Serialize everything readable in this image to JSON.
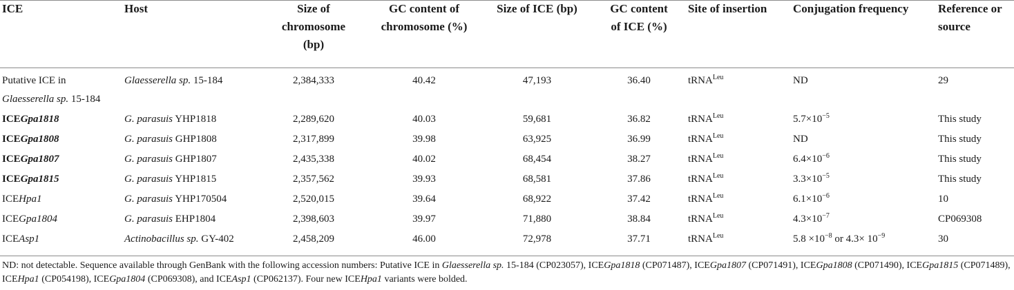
{
  "headers": {
    "ice": "ICE",
    "host": "Host",
    "chrom_size": [
      "Size of",
      "chromosome",
      "(bp)"
    ],
    "chrom_gc": [
      "GC content of",
      "chromosome (%)"
    ],
    "ice_size": "Size of ICE (bp)",
    "ice_gc": [
      "GC content",
      "of ICE (%)"
    ],
    "site": "Site of insertion",
    "conj": "Conjugation frequency",
    "ref": [
      "Reference or",
      "source"
    ]
  },
  "rows": [
    {
      "ice": {
        "pre": "Putative ICE in",
        "it": "Glaesserella sp.",
        "post": " 15-184",
        "multiline": true,
        "bold": false
      },
      "host": {
        "it": "Glaesserella sp.",
        "post": " 15-184"
      },
      "chrom_size": "2,384,333",
      "chrom_gc": "40.42",
      "ice_size": "47,193",
      "ice_gc": "36.40",
      "site": "tRNA",
      "site_sup": "Leu",
      "conj": {
        "base": "ND"
      },
      "ref": "29"
    },
    {
      "ice": {
        "pre": "ICE",
        "it": "Gpa1818",
        "post": "",
        "bold": true
      },
      "host": {
        "it": "G. parasuis",
        "post": " YHP1818"
      },
      "chrom_size": "2,289,620",
      "chrom_gc": "40.03",
      "ice_size": "59,681",
      "ice_gc": "36.82",
      "site": "tRNA",
      "site_sup": "Leu",
      "conj": {
        "base": "5.7×10",
        "exp": "−5"
      },
      "ref": "This study"
    },
    {
      "ice": {
        "pre": "ICE",
        "it": "Gpa1808",
        "post": "",
        "bold": true
      },
      "host": {
        "it": "G. parasuis",
        "post": " GHP1808"
      },
      "chrom_size": "2,317,899",
      "chrom_gc": "39.98",
      "ice_size": "63,925",
      "ice_gc": "36.99",
      "site": "tRNA",
      "site_sup": "Leu",
      "conj": {
        "base": "ND"
      },
      "ref": "This study"
    },
    {
      "ice": {
        "pre": "ICE",
        "it": "Gpa1807",
        "post": "",
        "bold": true
      },
      "host": {
        "it": "G. parasuis",
        "post": " GHP1807"
      },
      "chrom_size": "2,435,338",
      "chrom_gc": "40.02",
      "ice_size": "68,454",
      "ice_gc": "38.27",
      "site": "tRNA",
      "site_sup": "Leu",
      "conj": {
        "base": "6.4×10",
        "exp": "−6"
      },
      "ref": "This study"
    },
    {
      "ice": {
        "pre": "ICE",
        "it": "Gpa1815",
        "post": "",
        "bold": true
      },
      "host": {
        "it": "G. parasuis",
        "post": " YHP1815"
      },
      "chrom_size": "2,357,562",
      "chrom_gc": "39.93",
      "ice_size": "68,581",
      "ice_gc": "37.86",
      "site": "tRNA",
      "site_sup": "Leu",
      "conj": {
        "base": "3.3×10",
        "exp": "−5"
      },
      "ref": "This study"
    },
    {
      "ice": {
        "pre": "ICE",
        "it": "Hpa1",
        "post": "",
        "bold": false
      },
      "host": {
        "it": "G. parasuis",
        "post": " YHP170504"
      },
      "chrom_size": "2,520,015",
      "chrom_gc": "39.64",
      "ice_size": "68,922",
      "ice_gc": "37.42",
      "site": "tRNA",
      "site_sup": "Leu",
      "conj": {
        "base": "6.1×10",
        "exp": "−6"
      },
      "ref": "10"
    },
    {
      "ice": {
        "pre": "ICE",
        "it": "Gpa1804",
        "post": "",
        "bold": false
      },
      "host": {
        "it": "G. parasuis",
        "post": " EHP1804"
      },
      "chrom_size": "2,398,603",
      "chrom_gc": "39.97",
      "ice_size": "71,880",
      "ice_gc": "38.84",
      "site": "tRNA",
      "site_sup": "Leu",
      "conj": {
        "base": "4.3×10",
        "exp": "−7"
      },
      "ref": "CP069308"
    },
    {
      "ice": {
        "pre": "ICE",
        "it": "Asp1",
        "post": "",
        "bold": false
      },
      "host": {
        "it": "Actinobacillus sp.",
        "post": " GY-402"
      },
      "chrom_size": "2,458,209",
      "chrom_gc": "46.00",
      "ice_size": "72,978",
      "ice_gc": "37.71",
      "site": "tRNA",
      "site_sup": "Leu",
      "conj": {
        "base": "5.8 ×10",
        "exp": "−8",
        "mid": " or 4.3× 10",
        "exp2": "−9"
      },
      "ref": "30"
    }
  ],
  "footnote": [
    {
      "t": "ND: not detectable. Sequence available through GenBank with the following accession numbers: Putative ICE in "
    },
    {
      "i": "Glaesserella sp."
    },
    {
      "t": " 15-184 (CP023057), ICE"
    },
    {
      "i": "Gpa1818"
    },
    {
      "t": " (CP071487), ICE"
    },
    {
      "i": "Gpa1807"
    },
    {
      "t": " (CP071491), ICE"
    },
    {
      "i": "Gpa1808"
    },
    {
      "t": " (CP071490), ICE"
    },
    {
      "i": "Gpa1815"
    },
    {
      "t": " (CP071489), ICE"
    },
    {
      "i": "Hpa1"
    },
    {
      "t": " (CP054198), ICE"
    },
    {
      "i": "Gpa1804"
    },
    {
      "t": " (CP069308), and ICE"
    },
    {
      "i": "Asp1"
    },
    {
      "t": " (CP062137). Four new ICE"
    },
    {
      "i": "Hpa1"
    },
    {
      "t": " variants were bolded."
    }
  ]
}
